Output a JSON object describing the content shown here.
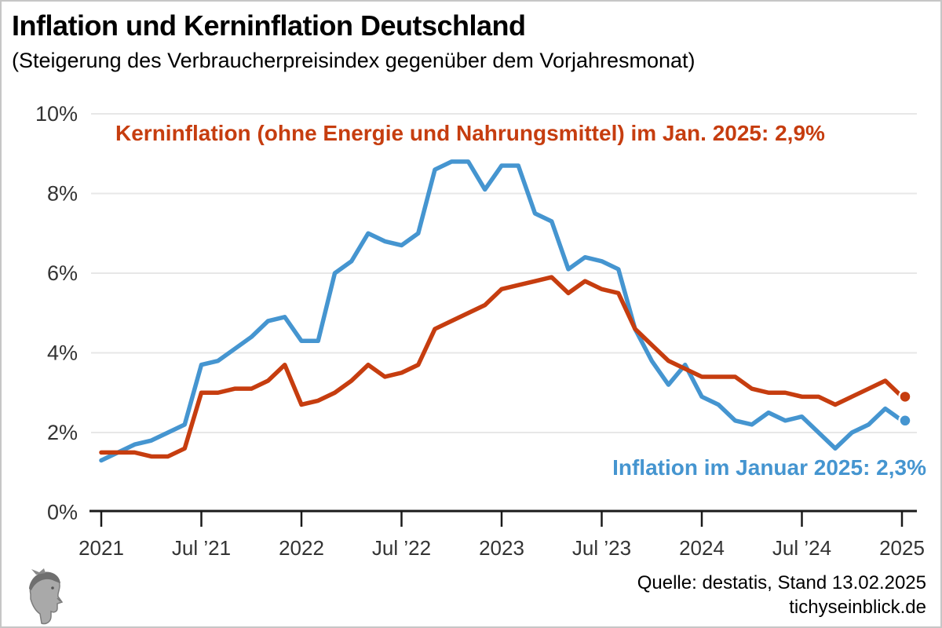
{
  "page": {
    "background": "#ffffff",
    "border_color": "#c6c6c6"
  },
  "header": {
    "title": "Inflation und Kerninflation Deutschland",
    "subtitle": "(Steigerung des Verbraucherpreisindex gegenüber dem Vorjahresmonat)"
  },
  "colors": {
    "inflation_blue": "#4595d0",
    "core_red": "#c63d0f",
    "grid": "#e7e7e7",
    "axis": "#1a1a1a",
    "tick_label": "#333333"
  },
  "chart_data": {
    "type": "line",
    "title": "Inflation und Kerninflation Deutschland",
    "subtitle": "(Steigerung des Verbraucherpreisindex gegenüber dem Vorjahresmonat)",
    "x_unit": "month",
    "x_start": "Jan 2021",
    "x_end": "Jan 2025",
    "n_points": 49,
    "ylim": [
      0,
      10
    ],
    "grid": "horizontal light gray lines at 2% steps",
    "legend_position": "inline annotations",
    "yticks": [
      {
        "value": 0,
        "label": "0%"
      },
      {
        "value": 2,
        "label": "2%"
      },
      {
        "value": 4,
        "label": "4%"
      },
      {
        "value": 6,
        "label": "6%"
      },
      {
        "value": 8,
        "label": "8%"
      },
      {
        "value": 10,
        "label": "10%"
      }
    ],
    "xticks": [
      {
        "index": 0,
        "label": "2021"
      },
      {
        "index": 6,
        "label": "Jul ’21"
      },
      {
        "index": 12,
        "label": "2022"
      },
      {
        "index": 18,
        "label": "Jul ’22"
      },
      {
        "index": 24,
        "label": "2023"
      },
      {
        "index": 30,
        "label": "Jul ’23"
      },
      {
        "index": 36,
        "label": "2024"
      },
      {
        "index": 42,
        "label": "Jul ’24"
      },
      {
        "index": 48,
        "label": "2025"
      }
    ],
    "series": [
      {
        "name": "Inflation",
        "color": "#4595d0",
        "last_value_label": "Inflation im Januar 2025: 2,3%",
        "values": [
          1.3,
          1.5,
          1.7,
          1.8,
          2.0,
          2.2,
          3.7,
          3.8,
          4.1,
          4.4,
          4.8,
          4.9,
          4.3,
          4.3,
          6.0,
          6.3,
          7.0,
          6.8,
          6.7,
          7.0,
          8.6,
          8.8,
          8.8,
          8.1,
          8.7,
          8.7,
          7.5,
          7.3,
          6.1,
          6.4,
          6.3,
          6.1,
          4.6,
          3.8,
          3.2,
          3.7,
          2.9,
          2.7,
          2.3,
          2.2,
          2.5,
          2.3,
          2.4,
          2.0,
          1.6,
          2.0,
          2.2,
          2.6,
          2.3
        ]
      },
      {
        "name": "Kerninflation",
        "color": "#c63d0f",
        "last_value_label": "Kerninflation (ohne Energie und Nahrungsmittel) im Jan. 2025: 2,9%",
        "values": [
          1.5,
          1.5,
          1.5,
          1.4,
          1.4,
          1.6,
          3.0,
          3.0,
          3.1,
          3.1,
          3.3,
          3.7,
          2.7,
          2.8,
          3.0,
          3.3,
          3.7,
          3.4,
          3.5,
          3.7,
          4.6,
          4.8,
          5.0,
          5.2,
          5.6,
          5.7,
          5.8,
          5.9,
          5.5,
          5.8,
          5.6,
          5.5,
          4.6,
          4.2,
          3.8,
          3.6,
          3.4,
          3.4,
          3.4,
          3.1,
          3.0,
          3.0,
          2.9,
          2.9,
          2.7,
          2.9,
          3.1,
          3.3,
          2.9
        ]
      }
    ]
  },
  "annotations": {
    "core_label": "Kerninflation (ohne Energie und Nahrungsmittel) im Jan. 2025: 2,9%",
    "inflation_label": "Inflation im Januar 2025: 2,3%"
  },
  "footer": {
    "source": "Quelle: destatis, Stand 13.02.2025",
    "website": "tichyseinblick.de"
  },
  "logo": {
    "name": "hermes-head-logo"
  }
}
